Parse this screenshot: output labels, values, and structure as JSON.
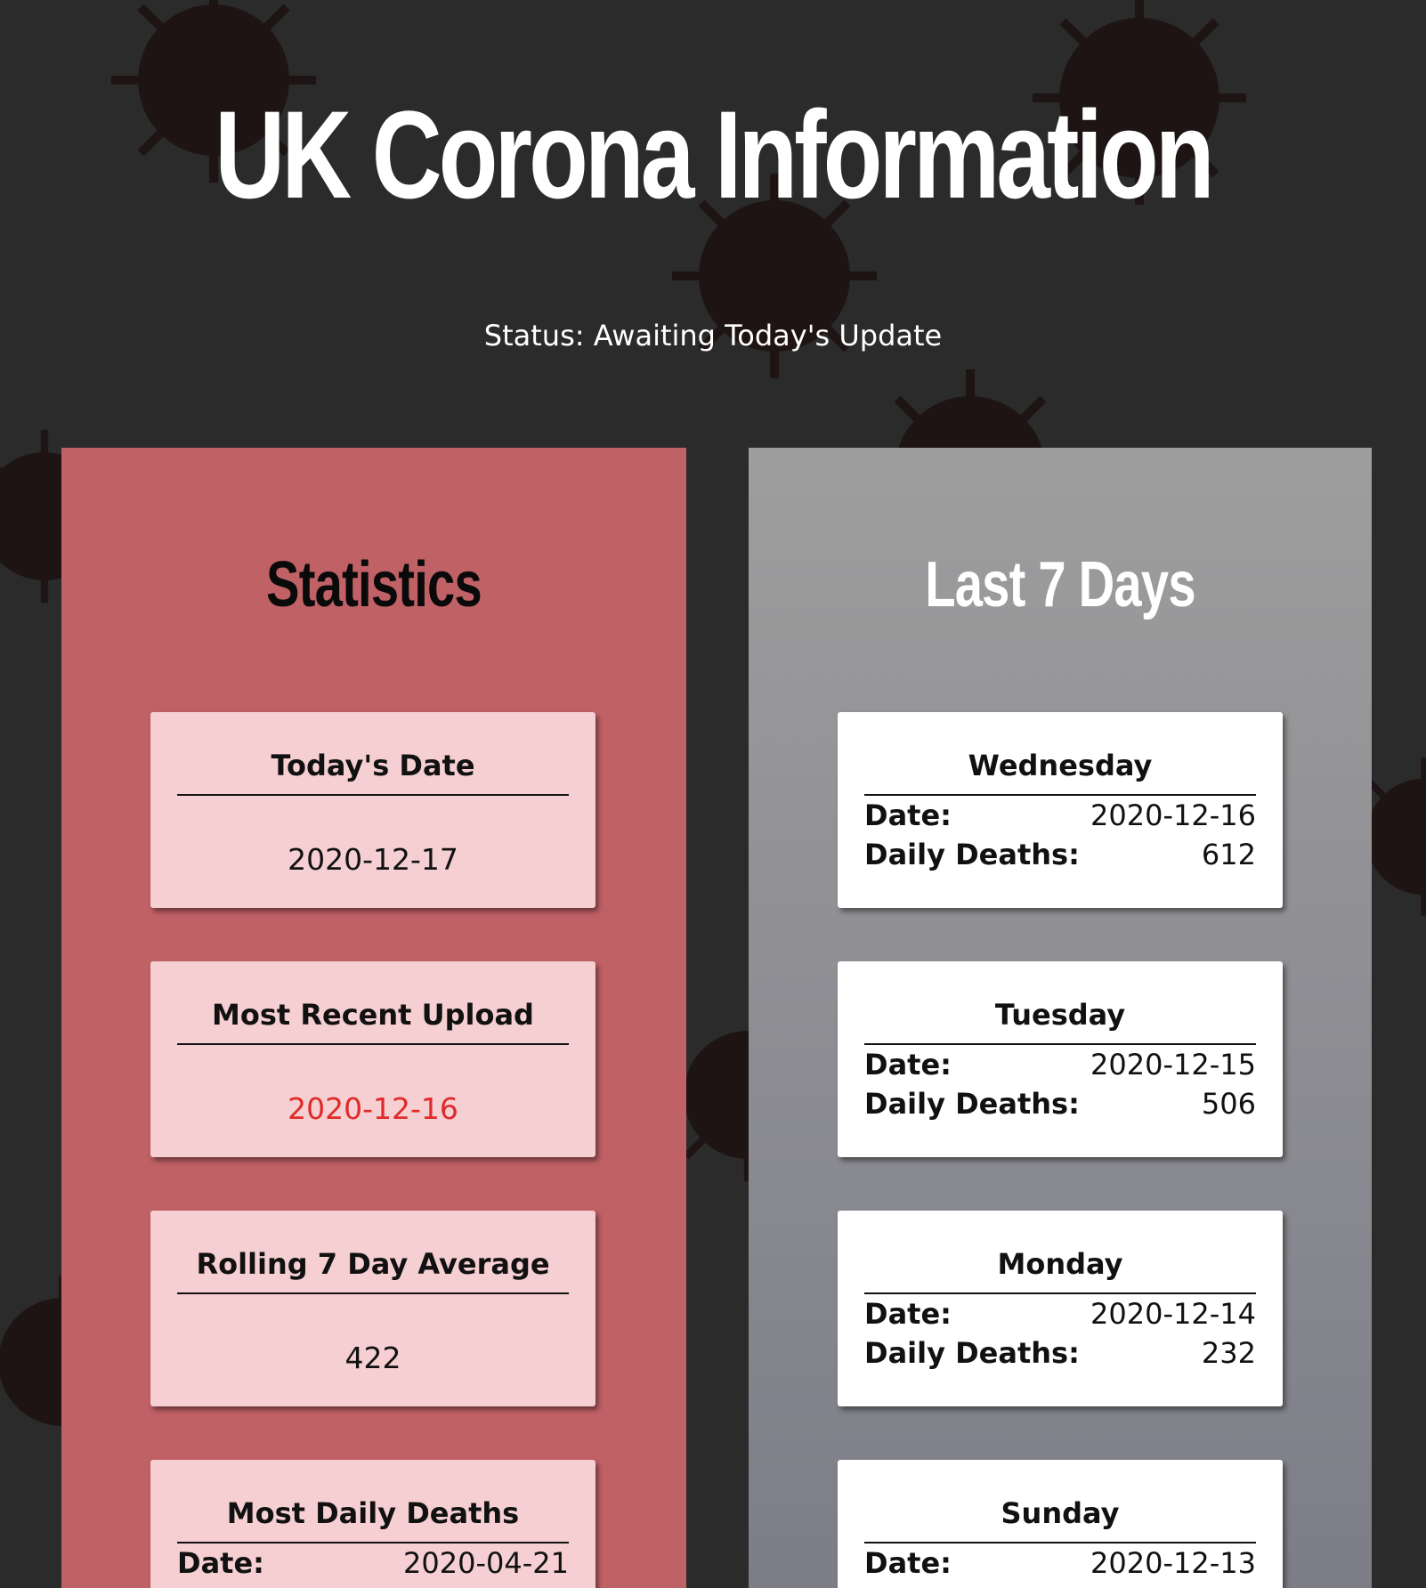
{
  "header": {
    "title": "UK Corona Information",
    "status": "Status: Awaiting Today's Update"
  },
  "colors": {
    "background": "#2b2b2b",
    "statistics_panel": "#c06166",
    "statistics_card": "#f5cfd1",
    "alert_text": "#e02a2a",
    "days_panel_top": "#9e9e9e",
    "days_panel_bottom": "#7d7d88"
  },
  "statistics": {
    "title": "Statistics",
    "cards": [
      {
        "title": "Today's Date",
        "value": "2020-12-17"
      },
      {
        "title": "Most Recent Upload",
        "value": "2020-12-16"
      },
      {
        "title": "Rolling 7 Day Average",
        "value": "422"
      },
      {
        "title": "Most Daily Deaths",
        "date_label": "Date:",
        "date": "2020-04-21"
      }
    ]
  },
  "last7": {
    "title": "Last 7 Days",
    "date_label": "Date:",
    "deaths_label": "Daily Deaths:",
    "days": [
      {
        "day": "Wednesday",
        "date": "2020-12-16",
        "deaths": "612"
      },
      {
        "day": "Tuesday",
        "date": "2020-12-15",
        "deaths": "506"
      },
      {
        "day": "Monday",
        "date": "2020-12-14",
        "deaths": "232"
      },
      {
        "day": "Sunday",
        "date": "2020-12-13"
      }
    ]
  }
}
